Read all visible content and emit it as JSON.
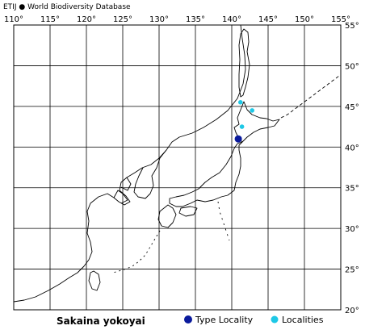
{
  "header": {
    "credit_prefix": "ETIJ",
    "credit_source": "World Biodiversity Database"
  },
  "map": {
    "projection": "equirectangular",
    "lon_range": [
      110,
      155
    ],
    "lat_range": [
      20,
      55
    ],
    "grid_step_deg": 5,
    "lon_labels": [
      "110°",
      "115°",
      "120°",
      "125°",
      "130°",
      "135°",
      "140°",
      "145°",
      "150°",
      "155°"
    ],
    "lat_labels": [
      "55°",
      "50°",
      "45°",
      "40°",
      "35°",
      "30°",
      "25°",
      "20°"
    ],
    "colors": {
      "grid": "#000000",
      "coast": "#000000",
      "type_locality": "#0a1a9c",
      "localities": "#1ec8e6"
    },
    "type_localities": [
      {
        "lon": 140.9,
        "lat": 41.0
      }
    ],
    "localities": [
      {
        "lon": 141.2,
        "lat": 45.5
      },
      {
        "lon": 142.8,
        "lat": 44.5
      },
      {
        "lon": 141.4,
        "lat": 42.5
      }
    ]
  },
  "species": {
    "name": "Sakaina yokoyai"
  },
  "legend": {
    "type_locality_label": "Type Locality",
    "localities_label": "Localities",
    "type_locality_icon": "filled-circle-icon",
    "localities_icon": "filled-circle-icon"
  }
}
